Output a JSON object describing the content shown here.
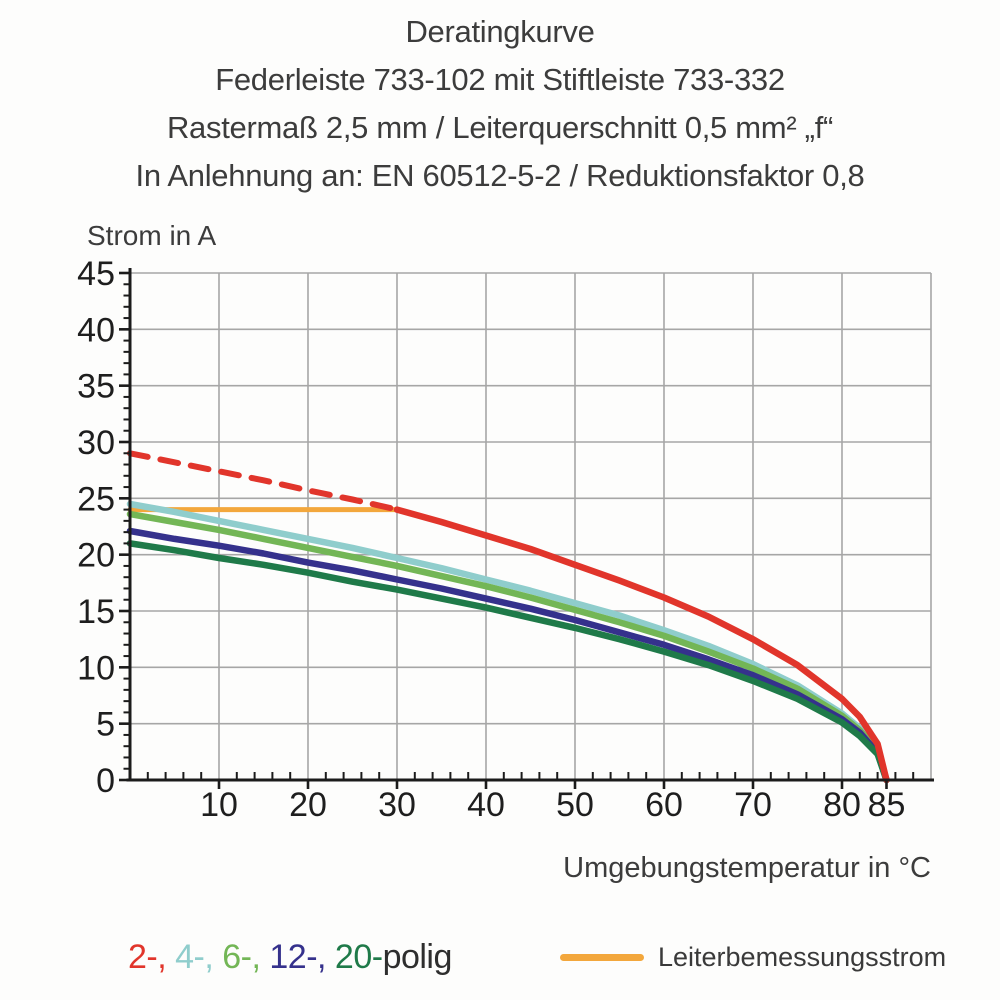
{
  "title": {
    "line1": "Deratingkurve",
    "line2": "Federleiste 733-102 mit Stiftleiste 733-332",
    "line3": "Rastermaß 2,5 mm / Leiterquerschnitt 0,5 mm² „f“",
    "line4": "In Anlehnung an: EN 60512-5-2 / Reduktionsfaktor 0,8"
  },
  "axes": {
    "y_label": "Strom in A",
    "x_label": "Umgebungstemperatur in °C"
  },
  "colors": {
    "red": "#E1352B",
    "cyan": "#8FCDCC",
    "green": "#73B656",
    "navy": "#35318C",
    "dark_green": "#1F7A49",
    "orange": "#F3A73C",
    "grid": "#A6A6A6",
    "axis": "#1B1B1B"
  },
  "chart_data": {
    "type": "line",
    "title": "Deratingkurve",
    "xlabel": "Umgebungstemperatur in °C",
    "ylabel": "Strom in A",
    "xlim": [
      0,
      90
    ],
    "ylim": [
      0,
      45
    ],
    "grid": true,
    "x_major_ticks": [
      10,
      20,
      30,
      40,
      50,
      60,
      70,
      80,
      85
    ],
    "x_grid_lines": [
      10,
      20,
      30,
      40,
      50,
      60,
      70,
      80,
      90
    ],
    "x_minor_step": 2,
    "x_minor_max": 88,
    "y_major_ticks": [
      0,
      5,
      10,
      15,
      20,
      25,
      30,
      35,
      40,
      45
    ],
    "y_minor_step": 1,
    "legend_position": "bottom",
    "series": [
      {
        "name": "Leiterbemessungsstrom",
        "color": "#F3A73C",
        "width": 5,
        "dashed": false,
        "x": [
          0,
          30
        ],
        "y": [
          24,
          24
        ]
      },
      {
        "name": "4-polig",
        "color": "#8FCDCC",
        "width": 6.5,
        "dashed": false,
        "x": [
          0,
          5,
          10,
          15,
          20,
          25,
          30,
          35,
          40,
          45,
          50,
          55,
          60,
          65,
          70,
          75,
          80,
          82,
          84,
          85
        ],
        "y": [
          24.5,
          23.8,
          23.0,
          22.2,
          21.4,
          20.6,
          19.7,
          18.8,
          17.8,
          16.8,
          15.7,
          14.6,
          13.3,
          11.9,
          10.3,
          8.4,
          5.9,
          4.6,
          2.7,
          0
        ]
      },
      {
        "name": "6-polig",
        "color": "#73B656",
        "width": 6.5,
        "dashed": false,
        "x": [
          0,
          5,
          10,
          15,
          20,
          25,
          30,
          35,
          40,
          45,
          50,
          55,
          60,
          65,
          70,
          75,
          80,
          82,
          84,
          85
        ],
        "y": [
          23.6,
          22.9,
          22.2,
          21.4,
          20.6,
          19.8,
          19.0,
          18.1,
          17.2,
          16.2,
          15.1,
          14.0,
          12.8,
          11.4,
          9.9,
          8.1,
          5.7,
          4.4,
          2.6,
          0
        ]
      },
      {
        "name": "12-polig",
        "color": "#35318C",
        "width": 6.5,
        "dashed": false,
        "x": [
          0,
          5,
          10,
          15,
          20,
          25,
          30,
          35,
          40,
          45,
          50,
          55,
          60,
          65,
          70,
          75,
          80,
          82,
          84,
          85
        ],
        "y": [
          22.1,
          21.4,
          20.8,
          20.1,
          19.3,
          18.6,
          17.8,
          17.0,
          16.1,
          15.2,
          14.2,
          13.1,
          12.0,
          10.7,
          9.3,
          7.6,
          5.4,
          4.2,
          2.4,
          0
        ]
      },
      {
        "name": "20-polig",
        "color": "#1F7A49",
        "width": 6.5,
        "dashed": false,
        "x": [
          0,
          5,
          10,
          15,
          20,
          25,
          30,
          35,
          40,
          45,
          50,
          55,
          60,
          65,
          70,
          75,
          80,
          82,
          84,
          85
        ],
        "y": [
          21.0,
          20.4,
          19.7,
          19.1,
          18.4,
          17.6,
          16.9,
          16.1,
          15.3,
          14.4,
          13.5,
          12.5,
          11.4,
          10.2,
          8.8,
          7.2,
          5.1,
          3.9,
          2.3,
          0
        ]
      },
      {
        "name": "2-polig (gestrichelt, oberhalb Leiterbemessungsstrom)",
        "color": "#E1352B",
        "width": 6,
        "dashed": true,
        "x": [
          0,
          5,
          10,
          15,
          20,
          25,
          30
        ],
        "y": [
          29.0,
          28.2,
          27.4,
          26.6,
          25.7,
          24.9,
          24.0
        ]
      },
      {
        "name": "2-polig",
        "color": "#E1352B",
        "width": 6.5,
        "dashed": false,
        "x": [
          30,
          35,
          40,
          45,
          50,
          55,
          60,
          65,
          70,
          75,
          80,
          82,
          84,
          85
        ],
        "y": [
          24.0,
          22.9,
          21.7,
          20.5,
          19.1,
          17.7,
          16.2,
          14.5,
          12.5,
          10.2,
          7.2,
          5.6,
          3.2,
          0
        ]
      }
    ]
  },
  "polig_legend": {
    "items": [
      {
        "label": "2-, ",
        "color": "#E1352B"
      },
      {
        "label": "4-, ",
        "color": "#8FCDCC"
      },
      {
        "label": "6-, ",
        "color": "#73B656"
      },
      {
        "label": "12-, ",
        "color": "#35318C"
      },
      {
        "label": "20-",
        "color": "#1F7A49"
      }
    ],
    "suffix": "polig"
  },
  "rated_legend": {
    "label": "Leiterbemessungsstrom",
    "color": "#F3A73C"
  }
}
